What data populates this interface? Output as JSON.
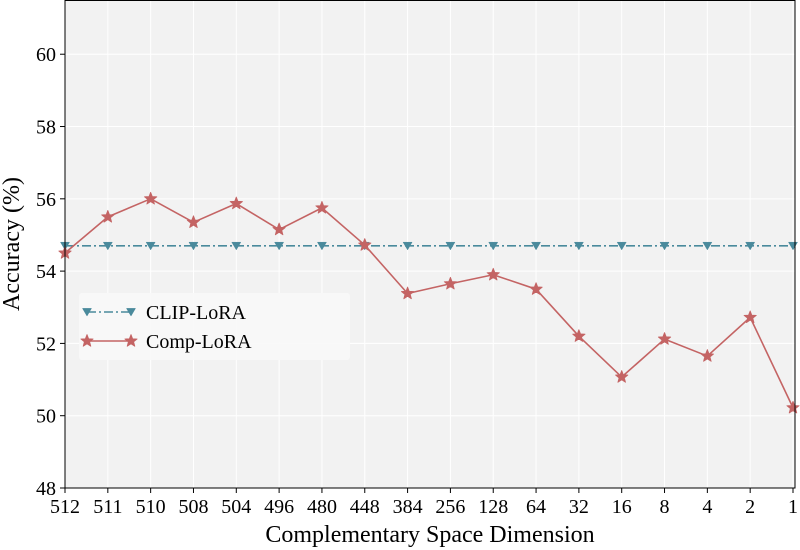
{
  "chart_data": {
    "type": "line",
    "title": "",
    "xlabel": "Complementary Space Dimension",
    "ylabel": "Accuracy (%)",
    "categories": [
      "512",
      "511",
      "510",
      "508",
      "504",
      "496",
      "480",
      "448",
      "384",
      "256",
      "128",
      "64",
      "32",
      "16",
      "8",
      "4",
      "2",
      "1"
    ],
    "ylim": [
      48,
      61.5
    ],
    "yticks": [
      48,
      50,
      52,
      54,
      56,
      58,
      60
    ],
    "grid": true,
    "legend_position": "center-left",
    "series": [
      {
        "name": "CLIP-LoRA",
        "color": "#4a8a9c",
        "marker": "triangle-down",
        "line_style": "dash-dot",
        "values": [
          54.7,
          54.7,
          54.7,
          54.7,
          54.7,
          54.7,
          54.7,
          54.7,
          54.7,
          54.7,
          54.7,
          54.7,
          54.7,
          54.7,
          54.7,
          54.7,
          54.7,
          54.7
        ]
      },
      {
        "name": "Comp-LoRA",
        "color": "#c46464",
        "marker": "star",
        "line_style": "solid",
        "values": [
          54.5,
          55.5,
          56.0,
          55.35,
          55.87,
          55.15,
          55.75,
          54.72,
          53.38,
          53.65,
          53.9,
          53.5,
          52.2,
          51.07,
          52.12,
          51.65,
          52.72,
          50.22
        ]
      }
    ]
  }
}
